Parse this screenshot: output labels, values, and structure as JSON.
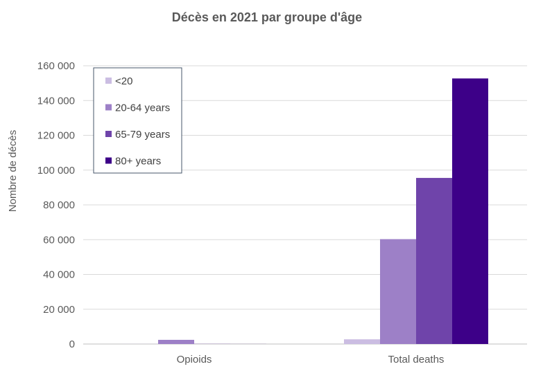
{
  "chart_data": {
    "type": "bar",
    "title": "Décès en 2021 par groupe d'âge",
    "xlabel": "",
    "ylabel": "Nombre de décès",
    "categories": [
      "Opioids",
      "Total deaths"
    ],
    "series": [
      {
        "name": "<20",
        "color": "#cbbde2",
        "values": [
          50,
          2700
        ]
      },
      {
        "name": "20-64 years",
        "color": "#9d80c7",
        "values": [
          2400,
          60300
        ]
      },
      {
        "name": "65-79 years",
        "color": "#6f44aa",
        "values": [
          80,
          95500
        ]
      },
      {
        "name": "80+ years",
        "color": "#3d0088",
        "values": [
          30,
          152700
        ]
      }
    ],
    "ylim": [
      0,
      160000
    ],
    "yticks": [
      0,
      20000,
      40000,
      60000,
      80000,
      100000,
      120000,
      140000,
      160000
    ],
    "ytick_labels": [
      "0",
      "20 000",
      "40 000",
      "60 000",
      "80 000",
      "100 000",
      "120 000",
      "140 000",
      "160 000"
    ],
    "grid": true,
    "legend_position": "top-left"
  }
}
